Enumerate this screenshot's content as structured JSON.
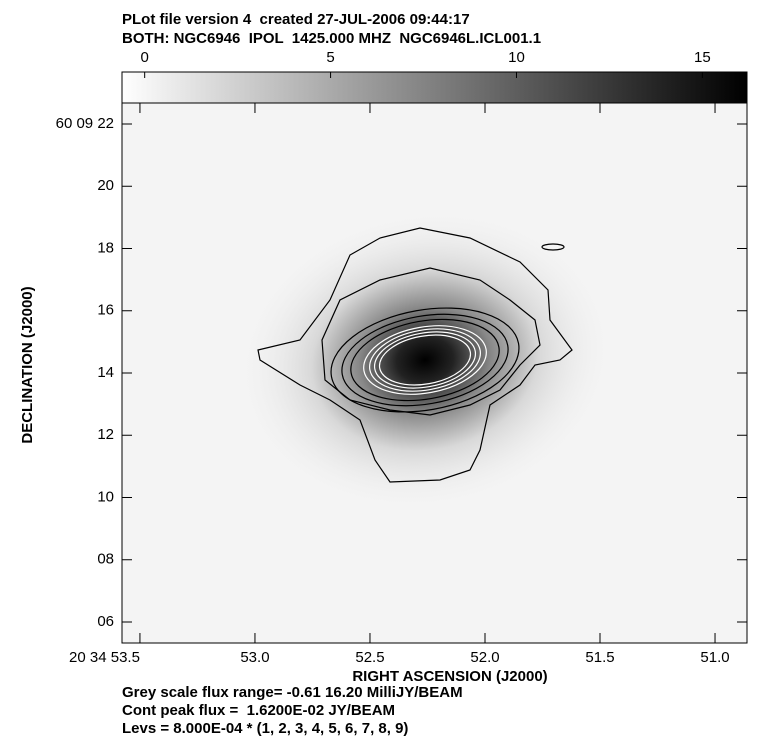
{
  "header": {
    "line1": "PLot file version 4  created 27-JUL-2006 09:44:17",
    "line2": "BOTH: NGC6946  IPOL  1425.000 MHZ  NGC6946L.ICL001.1"
  },
  "chart_data": {
    "type": "image",
    "colorbar": {
      "clim": [
        -0.61,
        16.2
      ],
      "ticks": [
        0,
        5,
        10,
        15
      ]
    },
    "xlabel": "RIGHT ASCENSION (J2000)",
    "ylabel": "DECLINATION (J2000)",
    "xlim": [
      53.578,
      50.861
    ],
    "xticks": [
      {
        "value": 53.5,
        "label": "20 34 53.5"
      },
      {
        "value": 53,
        "label": "53.0"
      },
      52.5,
      {
        "value": 52,
        "label": "52.0"
      },
      51.5,
      {
        "value": 51,
        "label": "51.0"
      }
    ],
    "ylim": [
      5.325,
      22.675
    ],
    "yticks": [
      {
        "value": 22,
        "label": "60 09 22"
      },
      20,
      18,
      16,
      14,
      12,
      10,
      {
        "value": 8,
        "label": "08"
      },
      {
        "value": 6,
        "label": "06"
      }
    ]
  },
  "footer": {
    "lines": [
      "Grey scale flux range= -0.61 16.20 MilliJY/BEAM",
      "Cont peak flux =  1.6200E-02 JY/BEAM",
      "Levs = 8.000E-04 * (1, 2, 3, 4, 5, 6, 7, 8, 9)"
    ]
  }
}
